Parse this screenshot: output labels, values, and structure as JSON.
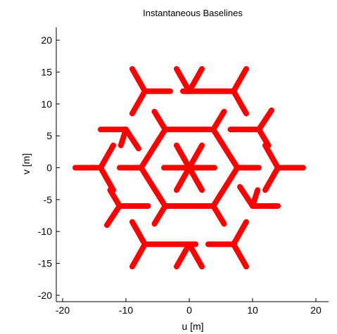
{
  "chart_data": {
    "type": "scatter",
    "title": "Instantaneous Baselines",
    "xlabel": "u [m]",
    "ylabel": "v [m]",
    "xlim": [
      -21,
      22
    ],
    "ylim": [
      -21,
      22
    ],
    "xticks": [
      -20,
      -10,
      0,
      10,
      20
    ],
    "yticks": [
      -20,
      -15,
      -10,
      -5,
      0,
      5,
      10,
      15,
      20
    ],
    "xtick_labels": [
      "-20",
      "-10",
      "0",
      "10",
      "20"
    ],
    "ytick_labels": [
      "-20",
      "-15",
      "-10",
      "-5",
      "0",
      "5",
      "10",
      "15",
      "20"
    ],
    "grid": false,
    "legend": "none",
    "marker_color": "#ff0000",
    "series": [
      {
        "style": "segments",
        "segments": [
          [
            [
              -2,
              3.5
            ],
            [
              2,
              -3.5
            ]
          ],
          [
            [
              2,
              3.5
            ],
            [
              -2,
              -3.5
            ]
          ],
          [
            [
              -4,
              0
            ],
            [
              4,
              0
            ]
          ],
          [
            [
              -3.8,
              6.0
            ],
            [
              3.8,
              6.0
            ]
          ],
          [
            [
              3.8,
              6.0
            ],
            [
              7.6,
              0
            ]
          ],
          [
            [
              7.6,
              0
            ],
            [
              3.8,
              -6.0
            ]
          ],
          [
            [
              3.8,
              -6.0
            ],
            [
              -3.8,
              -6.0
            ]
          ],
          [
            [
              -3.8,
              -6.0
            ],
            [
              -7.6,
              0
            ]
          ],
          [
            [
              -7.6,
              0
            ],
            [
              -3.8,
              6.0
            ]
          ],
          [
            [
              -7.6,
              0
            ],
            [
              -11,
              0
            ]
          ],
          [
            [
              7.6,
              0
            ],
            [
              11,
              0
            ]
          ],
          [
            [
              3.8,
              6.0
            ],
            [
              5.5,
              8.8
            ]
          ],
          [
            [
              -3.8,
              6.0
            ],
            [
              -5.5,
              8.8
            ]
          ],
          [
            [
              3.8,
              -6.0
            ],
            [
              5.5,
              -8.8
            ]
          ],
          [
            [
              -3.8,
              -6.0
            ],
            [
              -5.5,
              -8.8
            ]
          ],
          [
            [
              -14,
              0
            ],
            [
              -18,
              0
            ]
          ],
          [
            [
              -14,
              0
            ],
            [
              -12,
              3.5
            ]
          ],
          [
            [
              -14,
              0
            ],
            [
              -12,
              -3.5
            ]
          ],
          [
            [
              14,
              0
            ],
            [
              18,
              0
            ]
          ],
          [
            [
              14,
              0
            ],
            [
              12,
              3.5
            ]
          ],
          [
            [
              14,
              0
            ],
            [
              12,
              -3.5
            ]
          ],
          [
            [
              7,
              12
            ],
            [
              -1,
              12
            ]
          ],
          [
            [
              7,
              12
            ],
            [
              9,
              8.5
            ]
          ],
          [
            [
              7,
              12
            ],
            [
              9,
              15.5
            ]
          ],
          [
            [
              -7,
              12
            ],
            [
              -9,
              8.5
            ]
          ],
          [
            [
              -7,
              12
            ],
            [
              -9,
              15.5
            ]
          ],
          [
            [
              -7,
              12
            ],
            [
              -3,
              12
            ]
          ],
          [
            [
              7,
              -12
            ],
            [
              3,
              -12
            ]
          ],
          [
            [
              7,
              -12
            ],
            [
              9,
              -8.5
            ]
          ],
          [
            [
              7,
              -12
            ],
            [
              9,
              -15.5
            ]
          ],
          [
            [
              -7,
              -12
            ],
            [
              1,
              -12
            ]
          ],
          [
            [
              -7,
              -12
            ],
            [
              -9,
              -8.5
            ]
          ],
          [
            [
              -7,
              -12
            ],
            [
              -9,
              -15.5
            ]
          ],
          [
            [
              -10,
              6
            ],
            [
              -14,
              6
            ]
          ],
          [
            [
              -10,
              6
            ],
            [
              -8,
              3
            ]
          ],
          [
            [
              -10,
              6
            ],
            [
              -10.8,
              3.5
            ]
          ],
          [
            [
              11,
              6
            ],
            [
              6.5,
              6
            ]
          ],
          [
            [
              11,
              6
            ],
            [
              13,
              9
            ]
          ],
          [
            [
              11,
              6
            ],
            [
              12.5,
              3.5
            ]
          ],
          [
            [
              -11,
              -6
            ],
            [
              -6.5,
              -6
            ]
          ],
          [
            [
              -11,
              -6
            ],
            [
              -13,
              -9
            ]
          ],
          [
            [
              -11,
              -6
            ],
            [
              -12.5,
              -3.5
            ]
          ],
          [
            [
              10,
              -6
            ],
            [
              14,
              -6
            ]
          ],
          [
            [
              10,
              -6
            ],
            [
              8,
              -3
            ]
          ],
          [
            [
              10,
              -6
            ],
            [
              10.8,
              -3.5
            ]
          ],
          [
            [
              0,
              12
            ],
            [
              2,
              15.5
            ]
          ],
          [
            [
              0,
              12
            ],
            [
              -2,
              15.5
            ]
          ],
          [
            [
              0,
              -12
            ],
            [
              2,
              -15.5
            ]
          ],
          [
            [
              0,
              -12
            ],
            [
              -2,
              -15.5
            ]
          ]
        ]
      }
    ]
  }
}
